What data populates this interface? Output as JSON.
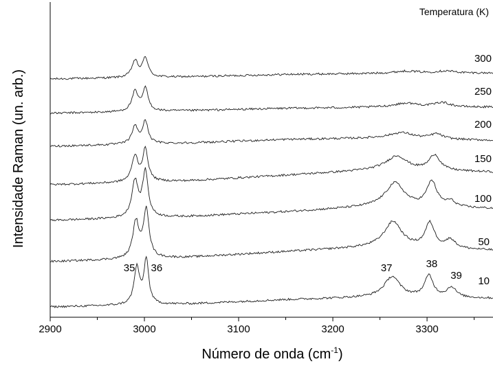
{
  "chart_data": {
    "type": "line",
    "xlabel": "Número de onda (cm",
    "xlabel_sup": "-1",
    "xlabel_end": ")",
    "ylabel": "Intensidade Raman (un. arb.)",
    "legend_title": "Temperatura (K)",
    "xlim": [
      2900,
      3370
    ],
    "x_ticks": [
      "2900",
      "3000",
      "3100",
      "3200",
      "3300"
    ],
    "x_tick_values": [
      2900,
      3000,
      3100,
      3200,
      3300
    ],
    "y_ticks_visible": false,
    "grid": false,
    "series": [
      {
        "name": "300",
        "baseline": [
          [
            2900,
            0.0
          ],
          [
            3050,
            0.1
          ],
          [
            3150,
            0.2
          ],
          [
            3250,
            0.24
          ],
          [
            3370,
            0.26
          ]
        ],
        "peaks": [
          [
            2990,
            0.72,
            4
          ],
          [
            3001,
            0.86,
            3.5
          ],
          [
            3278,
            0.1,
            16
          ],
          [
            3320,
            0.1,
            12
          ]
        ]
      },
      {
        "name": "250",
        "baseline": [
          [
            2900,
            0.0
          ],
          [
            3050,
            0.12
          ],
          [
            3150,
            0.22
          ],
          [
            3250,
            0.26
          ],
          [
            3370,
            0.27
          ]
        ],
        "peaks": [
          [
            2990,
            0.86,
            4
          ],
          [
            3001,
            1.0,
            3.5
          ],
          [
            3278,
            0.18,
            16
          ],
          [
            3316,
            0.2,
            10
          ]
        ]
      },
      {
        "name": "200",
        "baseline": [
          [
            2900,
            0.0
          ],
          [
            3050,
            0.15
          ],
          [
            3150,
            0.3
          ],
          [
            3250,
            0.36
          ],
          [
            3370,
            0.26
          ]
        ],
        "peaks": [
          [
            2990,
            0.76,
            4
          ],
          [
            3001,
            0.98,
            3.5
          ],
          [
            3273,
            0.26,
            15
          ],
          [
            3310,
            0.22,
            8
          ]
        ]
      },
      {
        "name": "150",
        "baseline": [
          [
            2900,
            0.0
          ],
          [
            3050,
            0.18
          ],
          [
            3150,
            0.42
          ],
          [
            3250,
            0.66
          ],
          [
            3370,
            0.56
          ]
        ],
        "peaks": [
          [
            2990,
            1.12,
            4
          ],
          [
            3001,
            1.4,
            3.5
          ],
          [
            3268,
            0.62,
            13
          ],
          [
            3308,
            0.68,
            7
          ]
        ]
      },
      {
        "name": "100",
        "baseline": [
          [
            2900,
            0.0
          ],
          [
            3050,
            0.18
          ],
          [
            3150,
            0.38
          ],
          [
            3250,
            0.62
          ],
          [
            3370,
            0.52
          ]
        ],
        "peaks": [
          [
            2990,
            1.6,
            4
          ],
          [
            3001,
            2.0,
            3.5
          ],
          [
            3266,
            1.04,
            12
          ],
          [
            3305,
            1.1,
            6.5
          ],
          [
            3325,
            0.24,
            6
          ]
        ]
      },
      {
        "name": "50",
        "baseline": [
          [
            2900,
            0.0
          ],
          [
            3050,
            0.2
          ],
          [
            3150,
            0.44
          ],
          [
            3250,
            0.66
          ],
          [
            3370,
            0.5
          ]
        ],
        "peaks": [
          [
            2991,
            1.6,
            4
          ],
          [
            3002,
            2.16,
            3.5
          ],
          [
            3264,
            1.12,
            11
          ],
          [
            3303,
            1.08,
            6
          ],
          [
            3325,
            0.38,
            6
          ]
        ]
      },
      {
        "name": "10",
        "baseline": [
          [
            2900,
            0.0
          ],
          [
            3050,
            0.14
          ],
          [
            3150,
            0.32
          ],
          [
            3250,
            0.44
          ],
          [
            3370,
            0.38
          ]
        ],
        "peaks": [
          [
            2992,
            1.64,
            3.5
          ],
          [
            3002,
            1.98,
            3
          ],
          [
            3263,
            0.9,
            10
          ],
          [
            3302,
            0.94,
            5.5
          ],
          [
            3326,
            0.44,
            6
          ]
        ]
      }
    ],
    "annotations": [
      {
        "text": "35",
        "x": 2984
      },
      {
        "text": "36",
        "x": 3013
      },
      {
        "text": "37",
        "x": 3257
      },
      {
        "text": "38",
        "x": 3305
      },
      {
        "text": "39",
        "x": 3331
      }
    ]
  }
}
